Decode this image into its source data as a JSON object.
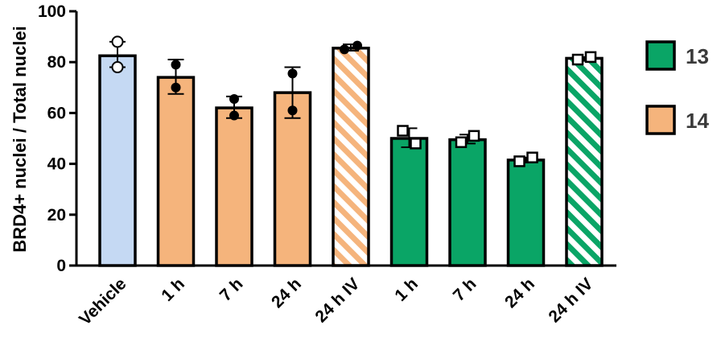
{
  "chart_data": {
    "type": "bar",
    "ylabel": "BRD4+ nuclei / Total nuclei",
    "xlabel": "",
    "ylim": [
      0,
      100
    ],
    "yticks": [
      0,
      20,
      40,
      60,
      80,
      100
    ],
    "categories": [
      "Vehicle",
      "1 h",
      "7 h",
      "24 h",
      "24 h IV",
      "1 h",
      "7 h",
      "24 h",
      "24 h IV"
    ],
    "values": [
      82.5,
      74,
      62,
      68,
      85.5,
      50,
      49.5,
      41.5,
      81.5
    ],
    "error_low": [
      78,
      67.5,
      58,
      58,
      84.5,
      46.5,
      48,
      40.5,
      80.5
    ],
    "error_high": [
      88,
      81,
      66.5,
      78,
      87,
      54,
      51.5,
      42.5,
      82
    ],
    "points": [
      [
        88,
        78
      ],
      [
        79,
        70
      ],
      [
        65.5,
        59
      ],
      [
        75.5,
        61
      ],
      [
        85,
        86.5
      ],
      [
        53,
        48
      ],
      [
        48.5,
        51
      ],
      [
        41,
        42.5
      ],
      [
        81,
        82
      ]
    ],
    "groups": [
      "vehicle",
      "14",
      "14",
      "14",
      "14",
      "13",
      "13",
      "13",
      "13"
    ],
    "patterns": [
      "solid",
      "solid",
      "solid",
      "solid",
      "hatched",
      "solid",
      "solid",
      "solid",
      "hatched"
    ],
    "legend": [
      {
        "label": "13",
        "color": "#0aa566"
      },
      {
        "label": "14",
        "color": "#f5b47c"
      }
    ],
    "colors": {
      "vehicle": "#c5d9f3",
      "14": "#f5b47c",
      "13": "#0aa566"
    },
    "marker": {
      "14": "filled-circle",
      "13": "open-square",
      "vehicle": "open-circle"
    },
    "legend_position": "right",
    "grid": false
  }
}
